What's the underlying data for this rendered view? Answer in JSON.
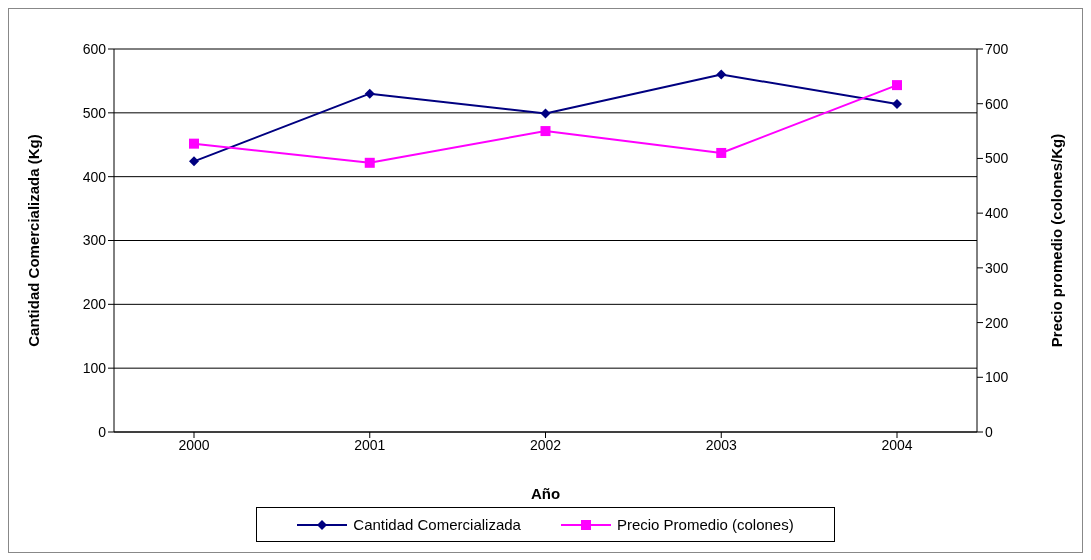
{
  "chart_data": {
    "type": "line",
    "xlabel": "Año",
    "ylabel": "Cantidad Comercializada (Kg)",
    "y2label": "Precio promedio (colones/Kg)",
    "categories": [
      "2000",
      "2001",
      "2002",
      "2003",
      "2004"
    ],
    "series": [
      {
        "name": "Cantidad  Comercializada",
        "color": "#000080",
        "values": [
          424,
          530,
          499,
          560,
          514
        ],
        "marker": "diamond"
      },
      {
        "name": "Precio Promedio (colones)",
        "color": "#ff00ff",
        "values": [
          527,
          492,
          550,
          510,
          634
        ],
        "axis": "y2",
        "marker": "square"
      }
    ],
    "ylim": [
      0,
      600
    ],
    "yticks": [
      0,
      100,
      200,
      300,
      400,
      500,
      600
    ],
    "y2lim": [
      0,
      700
    ],
    "y2ticks": [
      0,
      100,
      200,
      300,
      400,
      500,
      600,
      700
    ],
    "grid": "y",
    "legend": "bottom"
  }
}
